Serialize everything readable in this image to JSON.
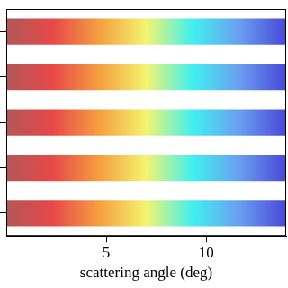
{
  "chart_data": {
    "type": "bar",
    "orientation": "horizontal",
    "x_label": "scattering angle (deg)",
    "categories": [
      null,
      null,
      null,
      null,
      null
    ],
    "values": [
      14,
      14,
      14,
      14,
      14
    ],
    "colors": [
      "#b05858",
      "#e84848",
      "#f4a040",
      "#f4f470",
      "#40f0f0",
      "#6a9ef0",
      "#4848d8"
    ],
    "xlim": [
      0,
      14
    ],
    "xticks": [
      5,
      10
    ],
    "tick_labels": "x",
    "grid": false
  }
}
